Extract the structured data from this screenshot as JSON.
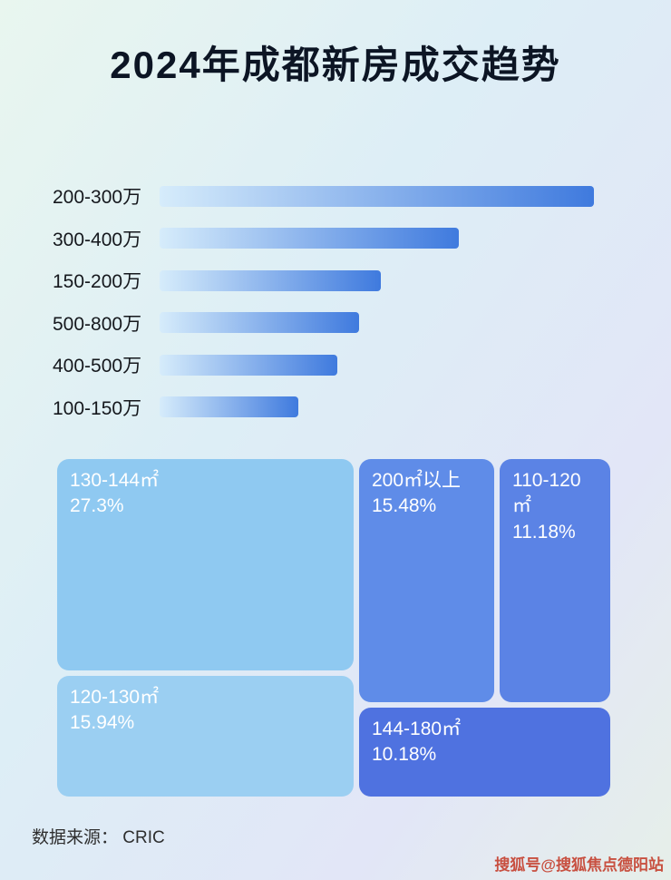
{
  "title": "2024年成都新房成交趋势",
  "chart_data": [
    {
      "type": "bar",
      "orientation": "horizontal",
      "categories": [
        "200-300万",
        "300-400万",
        "150-200万",
        "500-800万",
        "400-500万",
        "100-150万"
      ],
      "values": [
        100,
        69,
        51,
        46,
        41,
        32
      ],
      "value_unit": "relative bar length, % of longest bar (no numeric labels shown)",
      "bar_gradient": [
        "#d6ecfb",
        "#3f7ade"
      ],
      "grid": false,
      "legend": false
    },
    {
      "type": "treemap",
      "items": [
        {
          "label": "130-144㎡",
          "value": 27.3,
          "display": "27.3%",
          "color": "#8fc9f1"
        },
        {
          "label": "120-130㎡",
          "value": 15.94,
          "display": "15.94%",
          "color": "#9bcff2"
        },
        {
          "label": "200㎡以上",
          "value": 15.48,
          "display": "15.48%",
          "color": "#5f8ce8"
        },
        {
          "label": "110-120㎡",
          "value": 11.18,
          "display": "11.18%",
          "color": "#5b83e5"
        },
        {
          "label": "144-180㎡",
          "value": 10.18,
          "display": "10.18%",
          "color": "#4f72e0"
        }
      ]
    }
  ],
  "footer": {
    "source": "数据来源： CRIC"
  },
  "watermark": "搜狐号@搜狐焦点德阳站"
}
